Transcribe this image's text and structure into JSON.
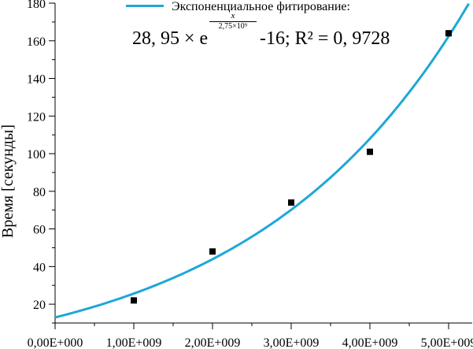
{
  "chart_data": {
    "type": "scatter",
    "title": "",
    "xlabel": "",
    "ylabel": "Время [секунды]",
    "xlim": [
      0,
      5300000000
    ],
    "ylim": [
      10,
      180
    ],
    "grid": false,
    "legend_position": "top",
    "x_ticks": [
      0,
      1000000000,
      2000000000,
      3000000000,
      4000000000,
      5000000000
    ],
    "x_tick_labels": [
      "0,00E+000",
      "1,00E+009",
      "2,00E+009",
      "3,00E+009",
      "4,00E+009",
      "5,00E+009"
    ],
    "y_ticks": [
      20,
      40,
      60,
      80,
      100,
      120,
      140,
      160,
      180
    ],
    "y_tick_labels": [
      "20",
      "40",
      "60",
      "80",
      "100",
      "120",
      "140",
      "160",
      "180"
    ],
    "series": [
      {
        "kind": "points",
        "x": [
          1000000000,
          2000000000,
          3000000000,
          4000000000,
          5000000000
        ],
        "y": [
          22,
          48,
          74,
          101,
          164
        ],
        "color": "#000000"
      },
      {
        "kind": "fit",
        "name": "Экспоненциальное фитирование:",
        "model": {
          "A": 28.95,
          "t": 2750000000,
          "c": -16
        },
        "color": "#1ea7d8"
      }
    ],
    "annotation": {
      "main": "28, 95 × e",
      "exp_num": "x",
      "exp_den": "2,75×10⁹",
      "tail": " -16; R² = 0, 9728"
    }
  }
}
